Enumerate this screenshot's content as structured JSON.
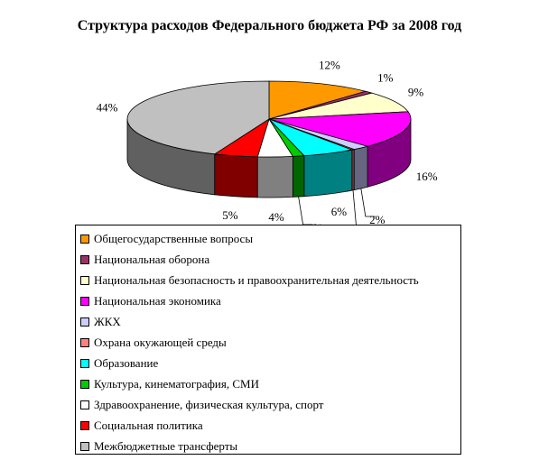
{
  "chart_data": {
    "type": "pie",
    "title": "Структура расходов Федерального бюджета РФ за 2008 год",
    "slices": [
      {
        "name": "Общегосударственные вопросы",
        "value": 12,
        "label": "12%",
        "color": "#FF9900"
      },
      {
        "name": "Национальная оборона",
        "value": 1,
        "label": "1%",
        "color": "#993366"
      },
      {
        "name": "Национальная безопасность и правоохранительная деятельность",
        "value": 9,
        "label": "9%",
        "color": "#FFFFCC"
      },
      {
        "name": "Национальная экономика",
        "value": 16,
        "label": "16%",
        "color": "#FF00FF"
      },
      {
        "name": "ЖКХ",
        "value": 2,
        "label": "2%",
        "color": "#CCCCFF"
      },
      {
        "name": "Охрана окужающей среды",
        "value": 0.3,
        "label": "0%",
        "color": "#FF8080"
      },
      {
        "name": "Образование",
        "value": 6,
        "label": "6%",
        "color": "#00FFFF"
      },
      {
        "name": "Культура, кинематография, СМИ",
        "value": 1.3,
        "label": "1%",
        "color": "#00CC00"
      },
      {
        "name": "Здравоохранение, физическая культура, спорт",
        "value": 4,
        "label": "4%",
        "color": "#FFFFFF"
      },
      {
        "name": "Социальная политика",
        "value": 5,
        "label": "5%",
        "color": "#FF0000"
      },
      {
        "name": "Межбюджетные трансферты",
        "value": 44,
        "label": "44%",
        "color": "#C0C0C0"
      }
    ],
    "legend_position": "bottom"
  }
}
